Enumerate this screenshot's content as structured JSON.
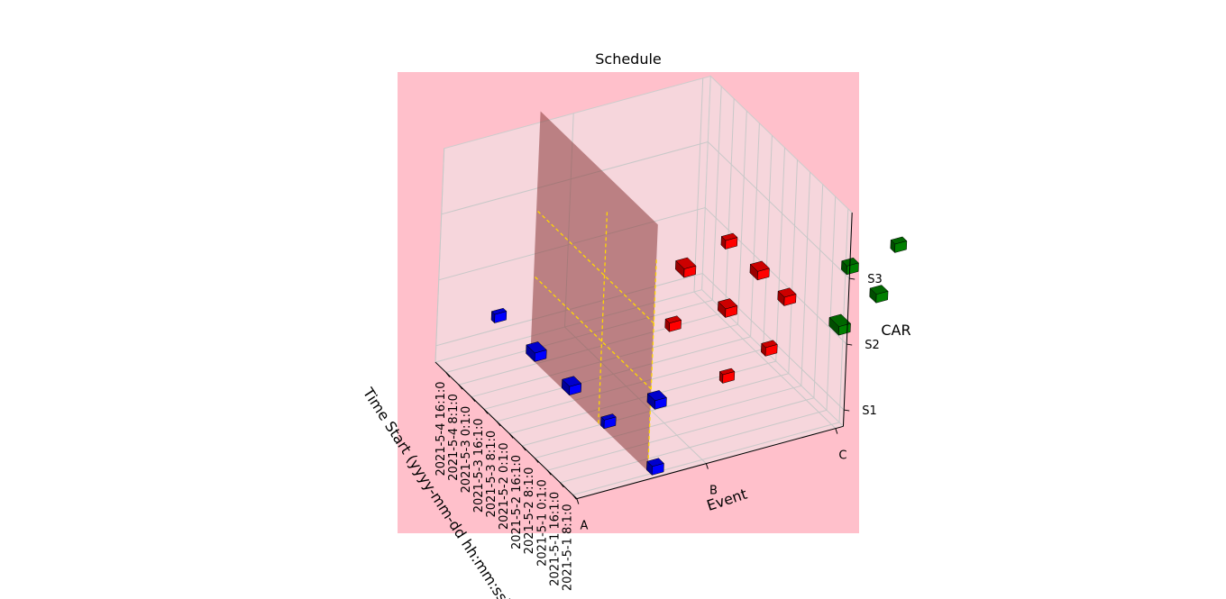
{
  "chart_data": {
    "type": "bar3d",
    "title": "Schedule",
    "xlabel": "Time Start (yyyy-mm-dd hh:mm:ss)",
    "ylabel": "Event",
    "zlabel": "CAR",
    "x_ticks": [
      "2021-5-1 8:1:0",
      "2021-5-1 16:1:0",
      "2021-5-1 0:1:0",
      "2021-5-2 8:1:0",
      "2021-5-2 16:1:0",
      "2021-5-2 0:1:0",
      "2021-5-3 8:1:0",
      "2021-5-3 16:1:0",
      "2021-5-3 0:1:0",
      "2021-5-4 8:1:0",
      "2021-5-4 16:1:0"
    ],
    "y_ticks": [
      "A",
      "B",
      "C"
    ],
    "z_ticks": [
      "S1",
      "S2",
      "S3"
    ],
    "grid": true,
    "colors": {
      "background": "#ffc0cb",
      "pane": "#f3dde2",
      "plane": "#8b3a3a",
      "guide": "#ffd700",
      "event_A": "#0000ff",
      "event_B": "#ff0000",
      "event_C": "#008000"
    },
    "bars": [
      {
        "event": "A",
        "car": "S1",
        "x": 0.0,
        "len": 1.0
      },
      {
        "event": "A",
        "car": "S1",
        "x": 3.6,
        "len": 0.6
      },
      {
        "event": "A",
        "car": "S1",
        "x": 6.2,
        "len": 1.4
      },
      {
        "event": "A",
        "car": "S1",
        "x": 8.8,
        "len": 1.6
      },
      {
        "event": "A",
        "car": "S1",
        "x": 11.8,
        "len": 0.6
      },
      {
        "event": "A",
        "car": "S2",
        "x": 0.0,
        "len": 1.4
      },
      {
        "event": "B",
        "car": "S1",
        "x": 4.4,
        "len": 0.6
      },
      {
        "event": "B",
        "car": "S1",
        "x": 8.4,
        "len": 0.8
      },
      {
        "event": "B",
        "car": "S2",
        "x": 1.4,
        "len": 0.8
      },
      {
        "event": "B",
        "car": "S2",
        "x": 4.4,
        "len": 1.4
      },
      {
        "event": "B",
        "car": "S2",
        "x": 7.5,
        "len": 1.6
      },
      {
        "event": "B",
        "car": "S3",
        "x": 0.2,
        "len": 1.2
      },
      {
        "event": "B",
        "car": "S3",
        "x": 2.2,
        "len": 1.4
      },
      {
        "event": "B",
        "car": "S3",
        "x": 4.6,
        "len": 0.8
      },
      {
        "event": "C",
        "car": "S1",
        "x": 5.4,
        "len": 1.8
      },
      {
        "event": "C",
        "car": "S2",
        "x": 2.8,
        "len": 1.2
      },
      {
        "event": "C",
        "car": "S2",
        "x": 5.0,
        "len": 1.0
      },
      {
        "event": "C",
        "car": "S3",
        "x": 1.6,
        "len": 0.8
      }
    ]
  }
}
